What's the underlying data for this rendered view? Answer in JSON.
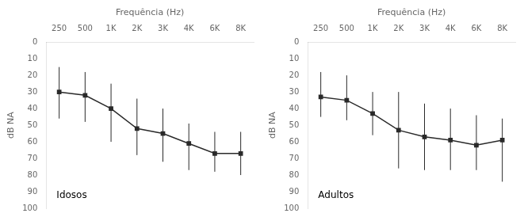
{
  "chart_data": [
    {
      "type": "line",
      "categories": [
        "250",
        "500",
        "1K",
        "2K",
        "3K",
        "4K",
        "6K",
        "8K"
      ],
      "series": [
        {
          "color": "#2a2a2a",
          "marker": "square",
          "values": [
            30,
            32,
            40,
            52,
            55,
            61,
            67,
            67
          ],
          "error_lower": [
            15,
            14,
            15,
            18,
            15,
            12,
            13,
            13
          ],
          "error_upper": [
            16,
            16,
            20,
            16,
            17,
            16,
            11,
            13
          ]
        }
      ],
      "x_label": "Frequência (Hz)",
      "y_label": "dB NA",
      "annotation": "Idosos",
      "ylim": [
        100,
        0
      ],
      "yticks": [
        0,
        10,
        20,
        30,
        40,
        50,
        60,
        70,
        80,
        90,
        100
      ],
      "grid": false
    },
    {
      "type": "line",
      "categories": [
        "250",
        "500",
        "1K",
        "2K",
        "3K",
        "4K",
        "6K",
        "8K"
      ],
      "series": [
        {
          "color": "#2a2a2a",
          "marker": "square",
          "values": [
            33,
            35,
            43,
            53,
            57,
            59,
            62,
            59
          ],
          "error_lower": [
            15,
            15,
            13,
            23,
            20,
            19,
            18,
            13
          ],
          "error_upper": [
            12,
            12,
            13,
            23,
            20,
            18,
            15,
            25
          ]
        }
      ],
      "x_label": "Frequência (Hz)",
      "y_label": "dB NA",
      "annotation": "Adultos",
      "ylim": [
        100,
        0
      ],
      "yticks": [
        0,
        10,
        20,
        30,
        40,
        50,
        60,
        70,
        80,
        90,
        100
      ],
      "grid": false
    }
  ]
}
